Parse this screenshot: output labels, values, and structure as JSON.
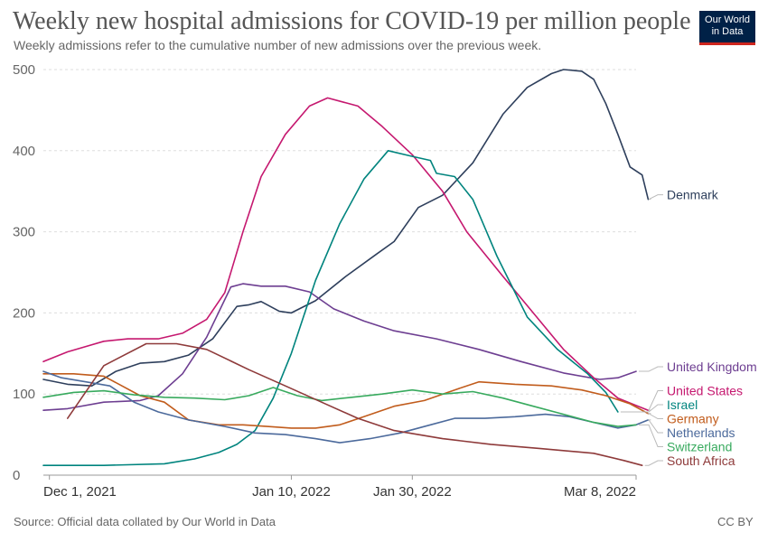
{
  "header": {
    "title": "Weekly new hospital admissions for COVID-19 per million people",
    "subtitle": "Weekly admissions refer to the cumulative number of new admissions over the previous week."
  },
  "logo": {
    "line1": "Our World",
    "line2": "in Data",
    "colors": {
      "background": "#002147",
      "accent": "#ce261e"
    }
  },
  "footer": {
    "source": "Source: Official data collated by Our World in Data",
    "license": "CC BY"
  },
  "chart_data": {
    "type": "line",
    "x_is_date": true,
    "x_range": [
      "2021-11-30",
      "2022-03-08"
    ],
    "x_ticks": [
      {
        "label": "Dec 1, 2021",
        "date": "2021-12-01"
      },
      {
        "label": "Jan 10, 2022",
        "date": "2022-01-10"
      },
      {
        "label": "Jan 30, 2022",
        "date": "2022-01-30"
      },
      {
        "label": "Mar 8, 2022",
        "date": "2022-03-08"
      }
    ],
    "ylim": [
      0,
      500
    ],
    "y_ticks": [
      0,
      100,
      200,
      300,
      400,
      500
    ],
    "grid": "horizontal dashed",
    "legend": "right, labels at line ends",
    "series": [
      {
        "name": "Denmark",
        "color": "#2e3f5c",
        "points": [
          [
            "2021-11-30",
            118
          ],
          [
            "2021-12-04",
            112
          ],
          [
            "2021-12-08",
            110
          ],
          [
            "2021-12-12",
            128
          ],
          [
            "2021-12-16",
            138
          ],
          [
            "2021-12-20",
            140
          ],
          [
            "2021-12-24",
            148
          ],
          [
            "2021-12-28",
            168
          ],
          [
            "2022-01-01",
            208
          ],
          [
            "2022-01-03",
            210
          ],
          [
            "2022-01-05",
            214
          ],
          [
            "2022-01-08",
            202
          ],
          [
            "2022-01-10",
            200
          ],
          [
            "2022-01-14",
            215
          ],
          [
            "2022-01-19",
            245
          ],
          [
            "2022-01-24",
            272
          ],
          [
            "2022-01-27",
            288
          ],
          [
            "2022-01-31",
            330
          ],
          [
            "2022-02-04",
            345
          ],
          [
            "2022-02-09",
            385
          ],
          [
            "2022-02-14",
            445
          ],
          [
            "2022-02-18",
            478
          ],
          [
            "2022-02-22",
            495
          ],
          [
            "2022-02-24",
            500
          ],
          [
            "2022-02-27",
            498
          ],
          [
            "2022-03-01",
            488
          ],
          [
            "2022-03-03",
            458
          ],
          [
            "2022-03-05",
            420
          ],
          [
            "2022-03-07",
            380
          ],
          [
            "2022-03-09",
            370
          ],
          [
            "2022-03-10",
            340
          ]
        ]
      },
      {
        "name": "United Kingdom",
        "color": "#6d3e91",
        "points": [
          [
            "2021-11-30",
            80
          ],
          [
            "2021-12-04",
            82
          ],
          [
            "2021-12-10",
            90
          ],
          [
            "2021-12-16",
            92
          ],
          [
            "2021-12-19",
            98
          ],
          [
            "2021-12-23",
            125
          ],
          [
            "2021-12-27",
            170
          ],
          [
            "2021-12-31",
            232
          ],
          [
            "2022-01-02",
            236
          ],
          [
            "2022-01-05",
            233
          ],
          [
            "2022-01-09",
            233
          ],
          [
            "2022-01-13",
            226
          ],
          [
            "2022-01-17",
            205
          ],
          [
            "2022-01-22",
            190
          ],
          [
            "2022-01-27",
            178
          ],
          [
            "2022-02-03",
            168
          ],
          [
            "2022-02-10",
            155
          ],
          [
            "2022-02-17",
            140
          ],
          [
            "2022-02-24",
            126
          ],
          [
            "2022-03-02",
            118
          ],
          [
            "2022-03-05",
            120
          ],
          [
            "2022-03-08",
            128
          ]
        ]
      },
      {
        "name": "United States",
        "color": "#c5186f",
        "points": [
          [
            "2021-11-30",
            140
          ],
          [
            "2021-12-04",
            152
          ],
          [
            "2021-12-10",
            165
          ],
          [
            "2021-12-14",
            168
          ],
          [
            "2021-12-19",
            168
          ],
          [
            "2021-12-23",
            175
          ],
          [
            "2021-12-27",
            192
          ],
          [
            "2021-12-30",
            225
          ],
          [
            "2022-01-02",
            300
          ],
          [
            "2022-01-05",
            368
          ],
          [
            "2022-01-09",
            420
          ],
          [
            "2022-01-13",
            455
          ],
          [
            "2022-01-16",
            465
          ],
          [
            "2022-01-21",
            455
          ],
          [
            "2022-01-25",
            430
          ],
          [
            "2022-01-30",
            395
          ],
          [
            "2022-02-04",
            350
          ],
          [
            "2022-02-08",
            300
          ],
          [
            "2022-02-14",
            245
          ],
          [
            "2022-02-19",
            200
          ],
          [
            "2022-02-24",
            155
          ],
          [
            "2022-03-01",
            120
          ],
          [
            "2022-03-05",
            95
          ],
          [
            "2022-03-10",
            80
          ]
        ]
      },
      {
        "name": "Israel",
        "color": "#00847e",
        "points": [
          [
            "2021-11-30",
            12
          ],
          [
            "2021-12-10",
            12
          ],
          [
            "2021-12-20",
            14
          ],
          [
            "2021-12-25",
            20
          ],
          [
            "2021-12-29",
            28
          ],
          [
            "2022-01-01",
            38
          ],
          [
            "2022-01-04",
            55
          ],
          [
            "2022-01-07",
            95
          ],
          [
            "2022-01-10",
            150
          ],
          [
            "2022-01-14",
            240
          ],
          [
            "2022-01-18",
            310
          ],
          [
            "2022-01-22",
            365
          ],
          [
            "2022-01-26",
            400
          ],
          [
            "2022-01-30",
            393
          ],
          [
            "2022-02-02",
            388
          ],
          [
            "2022-02-03",
            372
          ],
          [
            "2022-02-06",
            368
          ],
          [
            "2022-02-09",
            340
          ],
          [
            "2022-02-13",
            270
          ],
          [
            "2022-02-18",
            195
          ],
          [
            "2022-02-23",
            155
          ],
          [
            "2022-02-28",
            125
          ],
          [
            "2022-03-03",
            102
          ],
          [
            "2022-03-05",
            78
          ]
        ]
      },
      {
        "name": "Germany",
        "color": "#c15c1c",
        "points": [
          [
            "2021-11-30",
            125
          ],
          [
            "2021-12-05",
            125
          ],
          [
            "2021-12-10",
            122
          ],
          [
            "2021-12-16",
            98
          ],
          [
            "2021-12-20",
            90
          ],
          [
            "2021-12-24",
            68
          ],
          [
            "2021-12-29",
            62
          ],
          [
            "2022-01-02",
            62
          ],
          [
            "2022-01-06",
            60
          ],
          [
            "2022-01-10",
            58
          ],
          [
            "2022-01-14",
            58
          ],
          [
            "2022-01-18",
            62
          ],
          [
            "2022-01-22",
            72
          ],
          [
            "2022-01-27",
            85
          ],
          [
            "2022-02-01",
            92
          ],
          [
            "2022-02-06",
            105
          ],
          [
            "2022-02-10",
            115
          ],
          [
            "2022-02-16",
            112
          ],
          [
            "2022-02-22",
            110
          ],
          [
            "2022-02-27",
            105
          ],
          [
            "2022-03-03",
            98
          ],
          [
            "2022-03-07",
            88
          ],
          [
            "2022-03-10",
            76
          ]
        ]
      },
      {
        "name": "Netherlands",
        "color": "#4c6a9c",
        "points": [
          [
            "2021-11-30",
            128
          ],
          [
            "2021-12-03",
            120
          ],
          [
            "2021-12-07",
            115
          ],
          [
            "2021-12-11",
            110
          ],
          [
            "2021-12-15",
            90
          ],
          [
            "2021-12-19",
            78
          ],
          [
            "2021-12-24",
            68
          ],
          [
            "2021-12-30",
            60
          ],
          [
            "2022-01-04",
            52
          ],
          [
            "2022-01-09",
            50
          ],
          [
            "2022-01-14",
            45
          ],
          [
            "2022-01-18",
            40
          ],
          [
            "2022-01-23",
            45
          ],
          [
            "2022-01-28",
            52
          ],
          [
            "2022-02-02",
            62
          ],
          [
            "2022-02-06",
            70
          ],
          [
            "2022-02-11",
            70
          ],
          [
            "2022-02-16",
            72
          ],
          [
            "2022-02-21",
            75
          ],
          [
            "2022-02-25",
            72
          ],
          [
            "2022-03-01",
            65
          ],
          [
            "2022-03-05",
            58
          ],
          [
            "2022-03-08",
            62
          ],
          [
            "2022-03-10",
            68
          ]
        ]
      },
      {
        "name": "Switzerland",
        "color": "#38aa5e",
        "points": [
          [
            "2021-11-30",
            96
          ],
          [
            "2021-12-05",
            102
          ],
          [
            "2021-12-10",
            104
          ],
          [
            "2021-12-15",
            99
          ],
          [
            "2021-12-20",
            96
          ],
          [
            "2021-12-25",
            95
          ],
          [
            "2021-12-30",
            93
          ],
          [
            "2022-01-03",
            98
          ],
          [
            "2022-01-07",
            108
          ],
          [
            "2022-01-11",
            98
          ],
          [
            "2022-01-15",
            92
          ],
          [
            "2022-01-20",
            96
          ],
          [
            "2022-01-25",
            100
          ],
          [
            "2022-01-30",
            105
          ],
          [
            "2022-02-04",
            100
          ],
          [
            "2022-02-09",
            103
          ],
          [
            "2022-02-14",
            95
          ],
          [
            "2022-02-19",
            85
          ],
          [
            "2022-02-24",
            75
          ],
          [
            "2022-03-01",
            65
          ],
          [
            "2022-03-05",
            60
          ],
          [
            "2022-03-08",
            62
          ]
        ]
      },
      {
        "name": "South Africa",
        "color": "#8e3a3a",
        "points": [
          [
            "2021-12-04",
            70
          ],
          [
            "2021-12-10",
            135
          ],
          [
            "2021-12-17",
            162
          ],
          [
            "2021-12-22",
            162
          ],
          [
            "2021-12-27",
            155
          ],
          [
            "2022-01-03",
            130
          ],
          [
            "2022-01-09",
            110
          ],
          [
            "2022-01-15",
            90
          ],
          [
            "2022-01-21",
            70
          ],
          [
            "2022-01-27",
            55
          ],
          [
            "2022-02-04",
            45
          ],
          [
            "2022-02-12",
            38
          ],
          [
            "2022-02-20",
            33
          ],
          [
            "2022-03-01",
            27
          ],
          [
            "2022-03-06",
            18
          ],
          [
            "2022-03-09",
            12
          ]
        ]
      }
    ],
    "labels": [
      {
        "series": "Denmark",
        "y": 340
      },
      {
        "series": "United Kingdom",
        "y": 128
      },
      {
        "series": "United States",
        "y": 80
      },
      {
        "series": "Israel",
        "y": 78
      },
      {
        "series": "Germany",
        "y": 76
      },
      {
        "series": "Netherlands",
        "y": 68
      },
      {
        "series": "Switzerland",
        "y": 62
      },
      {
        "series": "South Africa",
        "y": 12
      }
    ]
  }
}
